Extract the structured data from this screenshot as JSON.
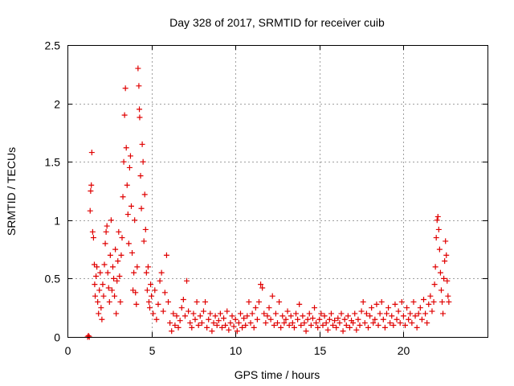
{
  "chart_data": {
    "type": "scatter",
    "title": "Day 328 of 2017, SRMTID for receiver cuib",
    "xlabel": "GPS time / hours",
    "ylabel": "SRMTID / TECUs",
    "xlim": [
      0,
      25
    ],
    "ylim": [
      0,
      2.5
    ],
    "x_ticks": [
      0,
      5,
      10,
      15,
      20
    ],
    "x_tick_labels": [
      "0",
      "5",
      "10",
      "15",
      "20"
    ],
    "y_ticks": [
      0,
      0.5,
      1,
      1.5,
      2,
      2.5
    ],
    "y_tick_labels": [
      "0",
      "0.5",
      "1",
      "1.5",
      "2",
      "2.5"
    ],
    "grid": true,
    "marker": "+",
    "series": [
      {
        "name": "SRMTID",
        "color": "#e00000",
        "points": [
          [
            1.2,
            0.0
          ],
          [
            1.25,
            0.01
          ],
          [
            1.3,
            0.0
          ],
          [
            1.35,
            1.08
          ],
          [
            1.38,
            1.25
          ],
          [
            1.42,
            1.3
          ],
          [
            1.45,
            1.58
          ],
          [
            1.5,
            0.9
          ],
          [
            1.55,
            0.85
          ],
          [
            1.6,
            0.62
          ],
          [
            1.62,
            0.45
          ],
          [
            1.65,
            0.35
          ],
          [
            1.7,
            0.52
          ],
          [
            1.75,
            0.6
          ],
          [
            1.8,
            0.3
          ],
          [
            1.85,
            0.2
          ],
          [
            1.9,
            0.4
          ],
          [
            1.95,
            0.55
          ],
          [
            2.0,
            0.25
          ],
          [
            2.05,
            0.15
          ],
          [
            2.1,
            0.45
          ],
          [
            2.15,
            0.35
          ],
          [
            2.2,
            0.62
          ],
          [
            2.25,
            0.8
          ],
          [
            2.3,
            0.9
          ],
          [
            2.35,
            0.95
          ],
          [
            2.4,
            0.55
          ],
          [
            2.45,
            0.42
          ],
          [
            2.5,
            0.3
          ],
          [
            2.55,
            0.7
          ],
          [
            2.6,
            1.0
          ],
          [
            2.65,
            0.4
          ],
          [
            2.7,
            0.6
          ],
          [
            2.75,
            0.5
          ],
          [
            2.8,
            0.35
          ],
          [
            2.85,
            0.75
          ],
          [
            2.9,
            0.2
          ],
          [
            2.95,
            0.48
          ],
          [
            3.0,
            0.65
          ],
          [
            3.05,
            0.9
          ],
          [
            3.1,
            0.52
          ],
          [
            3.15,
            0.3
          ],
          [
            3.2,
            0.7
          ],
          [
            3.25,
            0.85
          ],
          [
            3.3,
            1.2
          ],
          [
            3.35,
            1.5
          ],
          [
            3.4,
            1.9
          ],
          [
            3.45,
            2.13
          ],
          [
            3.5,
            1.62
          ],
          [
            3.55,
            1.3
          ],
          [
            3.6,
            1.05
          ],
          [
            3.65,
            0.8
          ],
          [
            3.7,
            1.45
          ],
          [
            3.75,
            1.55
          ],
          [
            3.8,
            1.12
          ],
          [
            3.85,
            0.72
          ],
          [
            3.9,
            0.4
          ],
          [
            3.95,
            0.55
          ],
          [
            4.0,
            1.0
          ],
          [
            4.05,
            0.38
          ],
          [
            4.1,
            0.28
          ],
          [
            4.15,
            0.6
          ],
          [
            4.2,
            2.3
          ],
          [
            4.25,
            2.15
          ],
          [
            4.28,
            1.95
          ],
          [
            4.3,
            1.88
          ],
          [
            4.35,
            1.38
          ],
          [
            4.4,
            1.1
          ],
          [
            4.45,
            1.65
          ],
          [
            4.5,
            1.5
          ],
          [
            4.55,
            0.82
          ],
          [
            4.6,
            1.22
          ],
          [
            4.65,
            0.92
          ],
          [
            4.7,
            0.55
          ],
          [
            4.75,
            0.4
          ],
          [
            4.8,
            0.6
          ],
          [
            4.85,
            0.3
          ],
          [
            4.9,
            0.25
          ],
          [
            4.95,
            0.45
          ],
          [
            5.0,
            0.35
          ],
          [
            5.1,
            0.2
          ],
          [
            5.2,
            0.4
          ],
          [
            5.3,
            0.15
          ],
          [
            5.4,
            0.28
          ],
          [
            5.5,
            0.48
          ],
          [
            5.6,
            0.55
          ],
          [
            5.7,
            0.22
          ],
          [
            5.8,
            0.38
          ],
          [
            5.9,
            0.7
          ],
          [
            6.0,
            0.3
          ],
          [
            6.1,
            0.12
          ],
          [
            6.2,
            0.05
          ],
          [
            6.3,
            0.2
          ],
          [
            6.4,
            0.1
          ],
          [
            6.5,
            0.18
          ],
          [
            6.6,
            0.08
          ],
          [
            6.7,
            0.14
          ],
          [
            6.8,
            0.25
          ],
          [
            6.9,
            0.32
          ],
          [
            7.0,
            0.18
          ],
          [
            7.1,
            0.48
          ],
          [
            7.2,
            0.22
          ],
          [
            7.3,
            0.12
          ],
          [
            7.4,
            0.08
          ],
          [
            7.5,
            0.2
          ],
          [
            7.6,
            0.15
          ],
          [
            7.7,
            0.3
          ],
          [
            7.8,
            0.1
          ],
          [
            7.9,
            0.18
          ],
          [
            8.0,
            0.12
          ],
          [
            8.1,
            0.22
          ],
          [
            8.2,
            0.3
          ],
          [
            8.3,
            0.08
          ],
          [
            8.4,
            0.15
          ],
          [
            8.5,
            0.2
          ],
          [
            8.6,
            0.05
          ],
          [
            8.7,
            0.12
          ],
          [
            8.8,
            0.18
          ],
          [
            8.9,
            0.1
          ],
          [
            9.0,
            0.14
          ],
          [
            9.1,
            0.2
          ],
          [
            9.2,
            0.08
          ],
          [
            9.3,
            0.16
          ],
          [
            9.4,
            0.1
          ],
          [
            9.5,
            0.22
          ],
          [
            9.6,
            0.06
          ],
          [
            9.7,
            0.12
          ],
          [
            9.8,
            0.18
          ],
          [
            9.9,
            0.09
          ],
          [
            10.0,
            0.15
          ],
          [
            10.1,
            0.05
          ],
          [
            10.2,
            0.12
          ],
          [
            10.3,
            0.2
          ],
          [
            10.4,
            0.08
          ],
          [
            10.5,
            0.16
          ],
          [
            10.6,
            0.1
          ],
          [
            10.7,
            0.18
          ],
          [
            10.8,
            0.3
          ],
          [
            10.9,
            0.12
          ],
          [
            11.0,
            0.2
          ],
          [
            11.1,
            0.08
          ],
          [
            11.2,
            0.25
          ],
          [
            11.3,
            0.15
          ],
          [
            11.4,
            0.3
          ],
          [
            11.5,
            0.45
          ],
          [
            11.6,
            0.42
          ],
          [
            11.7,
            0.2
          ],
          [
            11.8,
            0.12
          ],
          [
            11.9,
            0.18
          ],
          [
            12.0,
            0.25
          ],
          [
            12.1,
            0.15
          ],
          [
            12.2,
            0.35
          ],
          [
            12.3,
            0.1
          ],
          [
            12.4,
            0.2
          ],
          [
            12.5,
            0.12
          ],
          [
            12.6,
            0.3
          ],
          [
            12.7,
            0.08
          ],
          [
            12.8,
            0.18
          ],
          [
            12.9,
            0.12
          ],
          [
            13.0,
            0.15
          ],
          [
            13.1,
            0.22
          ],
          [
            13.2,
            0.1
          ],
          [
            13.3,
            0.18
          ],
          [
            13.4,
            0.12
          ],
          [
            13.5,
            0.08
          ],
          [
            13.6,
            0.2
          ],
          [
            13.7,
            0.15
          ],
          [
            13.8,
            0.28
          ],
          [
            13.9,
            0.1
          ],
          [
            14.0,
            0.18
          ],
          [
            14.1,
            0.12
          ],
          [
            14.2,
            0.05
          ],
          [
            14.3,
            0.15
          ],
          [
            14.4,
            0.2
          ],
          [
            14.5,
            0.1
          ],
          [
            14.6,
            0.16
          ],
          [
            14.7,
            0.25
          ],
          [
            14.8,
            0.12
          ],
          [
            14.9,
            0.08
          ],
          [
            15.0,
            0.15
          ],
          [
            15.1,
            0.2
          ],
          [
            15.2,
            0.1
          ],
          [
            15.3,
            0.18
          ],
          [
            15.4,
            0.12
          ],
          [
            15.5,
            0.06
          ],
          [
            15.6,
            0.15
          ],
          [
            15.7,
            0.2
          ],
          [
            15.8,
            0.1
          ],
          [
            15.9,
            0.14
          ],
          [
            16.0,
            0.08
          ],
          [
            16.1,
            0.16
          ],
          [
            16.2,
            0.12
          ],
          [
            16.3,
            0.2
          ],
          [
            16.4,
            0.05
          ],
          [
            16.5,
            0.15
          ],
          [
            16.6,
            0.1
          ],
          [
            16.7,
            0.18
          ],
          [
            16.8,
            0.08
          ],
          [
            16.9,
            0.14
          ],
          [
            17.0,
            0.12
          ],
          [
            17.1,
            0.2
          ],
          [
            17.2,
            0.06
          ],
          [
            17.3,
            0.15
          ],
          [
            17.4,
            0.1
          ],
          [
            17.5,
            0.22
          ],
          [
            17.6,
            0.3
          ],
          [
            17.7,
            0.12
          ],
          [
            17.8,
            0.2
          ],
          [
            17.9,
            0.08
          ],
          [
            18.0,
            0.18
          ],
          [
            18.1,
            0.25
          ],
          [
            18.2,
            0.12
          ],
          [
            18.3,
            0.15
          ],
          [
            18.4,
            0.28
          ],
          [
            18.5,
            0.1
          ],
          [
            18.6,
            0.2
          ],
          [
            18.7,
            0.3
          ],
          [
            18.8,
            0.15
          ],
          [
            18.9,
            0.08
          ],
          [
            19.0,
            0.2
          ],
          [
            19.1,
            0.25
          ],
          [
            19.2,
            0.12
          ],
          [
            19.3,
            0.18
          ],
          [
            19.4,
            0.1
          ],
          [
            19.5,
            0.28
          ],
          [
            19.6,
            0.15
          ],
          [
            19.7,
            0.22
          ],
          [
            19.8,
            0.12
          ],
          [
            19.9,
            0.3
          ],
          [
            20.0,
            0.18
          ],
          [
            20.1,
            0.1
          ],
          [
            20.2,
            0.25
          ],
          [
            20.3,
            0.15
          ],
          [
            20.4,
            0.2
          ],
          [
            20.5,
            0.12
          ],
          [
            20.6,
            0.3
          ],
          [
            20.7,
            0.18
          ],
          [
            20.8,
            0.08
          ],
          [
            20.9,
            0.2
          ],
          [
            21.0,
            0.25
          ],
          [
            21.1,
            0.15
          ],
          [
            21.2,
            0.32
          ],
          [
            21.3,
            0.2
          ],
          [
            21.4,
            0.12
          ],
          [
            21.5,
            0.28
          ],
          [
            21.6,
            0.35
          ],
          [
            21.7,
            0.22
          ],
          [
            21.8,
            0.3
          ],
          [
            21.85,
            0.45
          ],
          [
            21.9,
            0.6
          ],
          [
            21.95,
            0.85
          ],
          [
            22.0,
            1.0
          ],
          [
            22.05,
            1.03
          ],
          [
            22.1,
            0.92
          ],
          [
            22.15,
            0.75
          ],
          [
            22.2,
            0.55
          ],
          [
            22.25,
            0.4
          ],
          [
            22.3,
            0.3
          ],
          [
            22.35,
            0.2
          ],
          [
            22.4,
            0.5
          ],
          [
            22.45,
            0.65
          ],
          [
            22.5,
            0.82
          ],
          [
            22.55,
            0.7
          ],
          [
            22.6,
            0.48
          ],
          [
            22.65,
            0.35
          ],
          [
            22.7,
            0.3
          ]
        ]
      }
    ]
  }
}
